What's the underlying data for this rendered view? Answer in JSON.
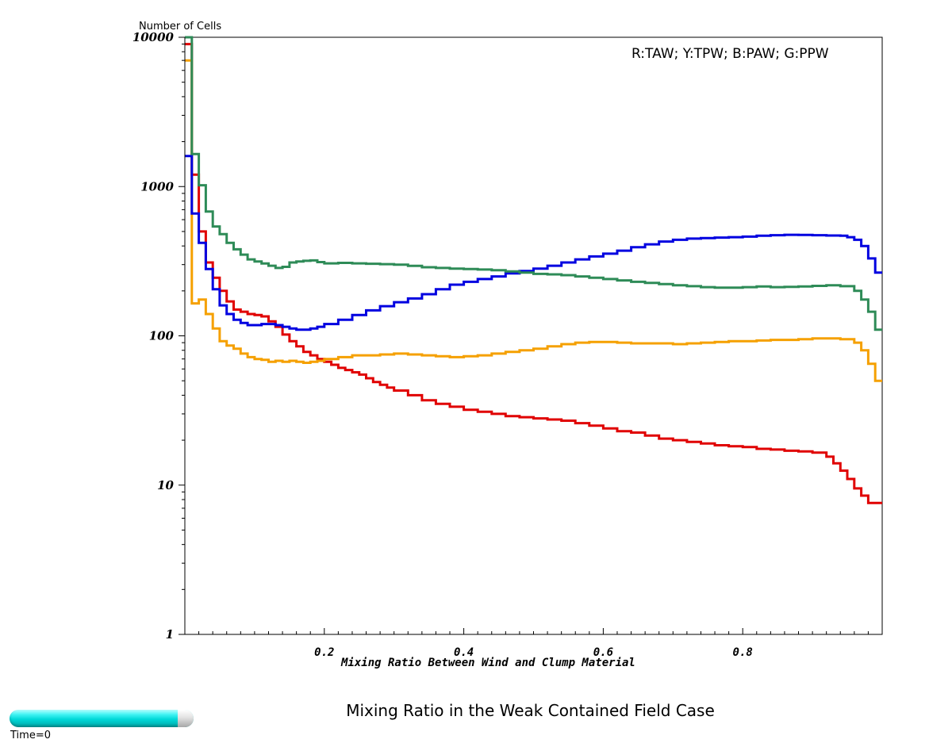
{
  "chart_data": {
    "type": "line",
    "step": true,
    "title": "Mixing Ratio in the Weak Contained Field Case",
    "xlabel": "Mixing Ratio Between Wind and Clump Material",
    "ylabel": "Number of Cells",
    "legend_text": "R:TAW; Y:TPW; B:PAW; G:PPW",
    "legend_position": "top-right",
    "xlim": [
      0,
      1
    ],
    "ylim": [
      1,
      10000
    ],
    "yscale": "log",
    "grid": false,
    "x_ticks": [
      "0.2",
      "0.4",
      "0.6",
      "0.8"
    ],
    "y_ticks": [
      "1",
      "10",
      "100",
      "1000",
      "10000"
    ],
    "series": [
      {
        "color": "#e00000",
        "x": [
          0,
          0.01,
          0.02,
          0.03,
          0.04,
          0.05,
          0.06,
          0.07,
          0.08,
          0.09,
          0.1,
          0.11,
          0.12,
          0.13,
          0.14,
          0.15,
          0.16,
          0.17,
          0.18,
          0.19,
          0.2,
          0.21,
          0.22,
          0.23,
          0.24,
          0.25,
          0.26,
          0.27,
          0.28,
          0.29,
          0.3,
          0.32,
          0.34,
          0.36,
          0.38,
          0.4,
          0.42,
          0.44,
          0.46,
          0.48,
          0.5,
          0.52,
          0.54,
          0.56,
          0.58,
          0.6,
          0.62,
          0.64,
          0.66,
          0.68,
          0.7,
          0.72,
          0.74,
          0.76,
          0.78,
          0.8,
          0.82,
          0.84,
          0.86,
          0.88,
          0.9,
          0.92,
          0.93,
          0.94,
          0.95,
          0.96,
          0.97,
          0.98,
          0.99
        ],
        "y": [
          9000,
          1200,
          500,
          310,
          245,
          200,
          170,
          150,
          145,
          140,
          138,
          135,
          125,
          115,
          102,
          92,
          85,
          78,
          74,
          70,
          67,
          64,
          61,
          59,
          57,
          55,
          52,
          49,
          47,
          45,
          43,
          40,
          37,
          35,
          33.5,
          32,
          31,
          30,
          29,
          28.5,
          28,
          27.5,
          27,
          26,
          25,
          24,
          23,
          22.5,
          21.5,
          20.5,
          20,
          19.5,
          19,
          18.5,
          18.2,
          18,
          17.5,
          17.3,
          17,
          16.8,
          16.5,
          15.5,
          14,
          12.5,
          11,
          9.5,
          8.5,
          7.6,
          7.6
        ]
      },
      {
        "color": "#f5a000",
        "x": [
          0,
          0.01,
          0.02,
          0.03,
          0.04,
          0.05,
          0.06,
          0.07,
          0.08,
          0.09,
          0.1,
          0.11,
          0.12,
          0.13,
          0.14,
          0.15,
          0.16,
          0.17,
          0.18,
          0.19,
          0.2,
          0.22,
          0.24,
          0.26,
          0.28,
          0.3,
          0.32,
          0.34,
          0.36,
          0.38,
          0.4,
          0.42,
          0.44,
          0.46,
          0.48,
          0.5,
          0.52,
          0.54,
          0.56,
          0.58,
          0.6,
          0.62,
          0.64,
          0.66,
          0.68,
          0.7,
          0.72,
          0.74,
          0.76,
          0.78,
          0.8,
          0.82,
          0.84,
          0.86,
          0.88,
          0.9,
          0.92,
          0.94,
          0.96,
          0.97,
          0.98,
          0.99
        ],
        "y": [
          7000,
          165,
          175,
          140,
          112,
          92,
          86,
          82,
          76,
          72,
          70,
          69,
          67,
          68,
          67,
          68,
          67,
          66,
          67,
          68,
          70,
          72,
          74,
          74,
          75,
          76,
          75,
          74,
          73,
          72,
          73,
          74,
          76,
          78,
          80,
          82,
          85,
          88,
          90,
          91,
          91,
          90,
          89,
          89,
          89,
          88,
          89,
          90,
          91,
          92,
          92,
          93,
          94,
          94,
          95,
          96,
          96,
          95,
          90,
          80,
          65,
          50
        ]
      },
      {
        "color": "#0000e0",
        "x": [
          0,
          0.01,
          0.02,
          0.03,
          0.04,
          0.05,
          0.06,
          0.07,
          0.08,
          0.09,
          0.1,
          0.11,
          0.12,
          0.13,
          0.14,
          0.15,
          0.16,
          0.17,
          0.18,
          0.19,
          0.2,
          0.22,
          0.24,
          0.26,
          0.28,
          0.3,
          0.32,
          0.34,
          0.36,
          0.38,
          0.4,
          0.42,
          0.44,
          0.46,
          0.48,
          0.5,
          0.52,
          0.54,
          0.56,
          0.58,
          0.6,
          0.62,
          0.64,
          0.66,
          0.68,
          0.7,
          0.72,
          0.74,
          0.76,
          0.78,
          0.8,
          0.82,
          0.84,
          0.86,
          0.88,
          0.9,
          0.92,
          0.94,
          0.95,
          0.96,
          0.97,
          0.98,
          0.99
        ],
        "y": [
          1600,
          660,
          420,
          280,
          205,
          160,
          140,
          128,
          122,
          118,
          118,
          120,
          120,
          118,
          115,
          112,
          110,
          110,
          112,
          115,
          120,
          128,
          138,
          148,
          158,
          168,
          178,
          190,
          205,
          220,
          230,
          240,
          250,
          262,
          272,
          282,
          295,
          310,
          325,
          340,
          355,
          372,
          392,
          410,
          428,
          440,
          448,
          452,
          455,
          458,
          462,
          468,
          472,
          475,
          474,
          472,
          470,
          468,
          458,
          440,
          400,
          330,
          265
        ]
      },
      {
        "color": "#2e8b57",
        "x": [
          0,
          0.01,
          0.02,
          0.03,
          0.04,
          0.05,
          0.06,
          0.07,
          0.08,
          0.09,
          0.1,
          0.11,
          0.12,
          0.13,
          0.14,
          0.15,
          0.16,
          0.17,
          0.18,
          0.19,
          0.2,
          0.22,
          0.24,
          0.26,
          0.28,
          0.3,
          0.32,
          0.34,
          0.36,
          0.38,
          0.4,
          0.42,
          0.44,
          0.46,
          0.48,
          0.5,
          0.52,
          0.54,
          0.56,
          0.58,
          0.6,
          0.62,
          0.64,
          0.66,
          0.68,
          0.7,
          0.72,
          0.74,
          0.76,
          0.78,
          0.8,
          0.82,
          0.84,
          0.86,
          0.88,
          0.9,
          0.92,
          0.94,
          0.96,
          0.97,
          0.98,
          0.99
        ],
        "y": [
          10000,
          1650,
          1020,
          680,
          540,
          480,
          420,
          380,
          350,
          325,
          315,
          305,
          295,
          285,
          290,
          310,
          315,
          318,
          320,
          312,
          306,
          308,
          306,
          304,
          302,
          300,
          294,
          288,
          285,
          282,
          280,
          278,
          275,
          270,
          265,
          260,
          258,
          255,
          250,
          245,
          240,
          235,
          230,
          226,
          222,
          218,
          215,
          212,
          210,
          210,
          212,
          214,
          212,
          213,
          214,
          216,
          218,
          215,
          200,
          175,
          145,
          110
        ]
      }
    ]
  }
}
